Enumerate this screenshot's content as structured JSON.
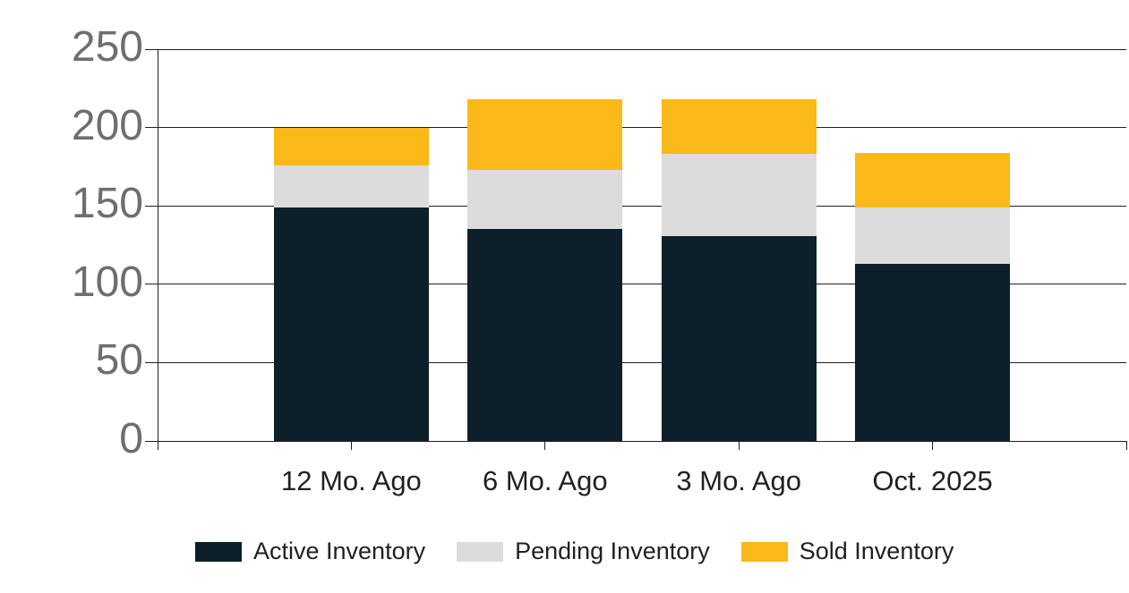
{
  "chart_data": {
    "type": "bar",
    "stacked": true,
    "title": "",
    "xlabel": "",
    "ylabel": "",
    "categories": [
      "12 Mo. Ago",
      "6 Mo. Ago",
      "3 Mo. Ago",
      "Oct. 2025"
    ],
    "series": [
      {
        "name": "Active Inventory",
        "color": "#0c1f2b",
        "values": [
          149,
          135,
          131,
          113
        ]
      },
      {
        "name": "Pending Inventory",
        "color": "#dcdcdc",
        "values": [
          27,
          38,
          52,
          36
        ]
      },
      {
        "name": "Sold Inventory",
        "color": "#fbb819",
        "values": [
          24,
          45,
          35,
          35
        ]
      }
    ],
    "totals": [
      200,
      218,
      218,
      184
    ],
    "ylim": [
      0,
      250
    ],
    "yticks": [
      0,
      50,
      100,
      150,
      200,
      250
    ],
    "grid": true,
    "legend_position": "bottom"
  },
  "styles": {
    "background": "#ffffff",
    "axis_color": "#231f20",
    "y_tick_label_color": "#6d6e71",
    "x_tick_label_color": "#231f20",
    "legend_text_color": "#231f20"
  }
}
